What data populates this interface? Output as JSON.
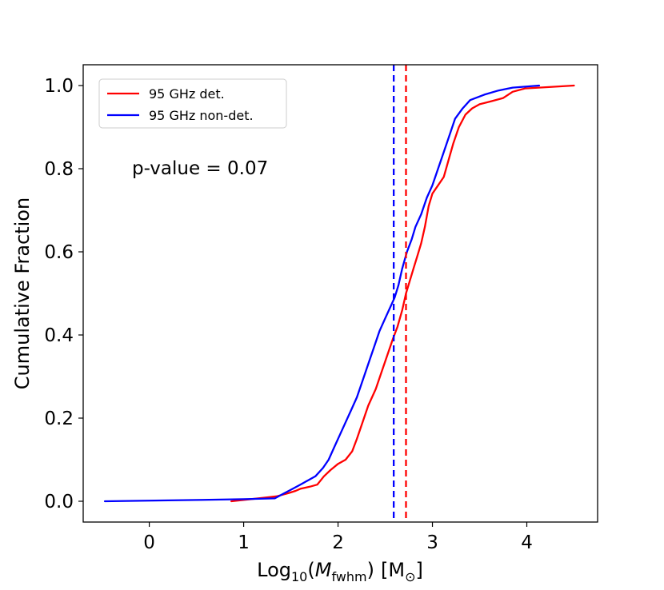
{
  "chart_data": {
    "type": "line",
    "title": "",
    "xlabel": {
      "prefix": "Log",
      "sub": "10",
      "paren_open": "(",
      "var": "M",
      "var_sub": "fwhm",
      "paren_close": ")",
      "unit": "[M",
      "unit_sub": "⊙",
      "unit_close": "]"
    },
    "ylabel": "Cumulative Fraction",
    "xlim": [
      -0.7,
      4.75
    ],
    "ylim": [
      -0.05,
      1.05
    ],
    "xticks": [
      0,
      1,
      2,
      3,
      4
    ],
    "xtick_labels": [
      "0",
      "1",
      "2",
      "3",
      "4"
    ],
    "yticks": [
      0.0,
      0.2,
      0.4,
      0.6,
      0.8,
      1.0
    ],
    "ytick_labels": [
      "0.0",
      "0.2",
      "0.4",
      "0.6",
      "0.8",
      "1.0"
    ],
    "legend_position": "top-left",
    "annotation": "p-value = 0.07",
    "series": [
      {
        "name": "95 GHz det.",
        "color": "#ff0000",
        "points": [
          [
            0.87,
            0.0
          ],
          [
            1.2,
            0.008
          ],
          [
            1.35,
            0.012
          ],
          [
            1.48,
            0.02
          ],
          [
            1.55,
            0.025
          ],
          [
            1.6,
            0.03
          ],
          [
            1.7,
            0.035
          ],
          [
            1.78,
            0.04
          ],
          [
            1.85,
            0.06
          ],
          [
            1.92,
            0.075
          ],
          [
            2.0,
            0.09
          ],
          [
            2.08,
            0.1
          ],
          [
            2.15,
            0.12
          ],
          [
            2.2,
            0.15
          ],
          [
            2.26,
            0.19
          ],
          [
            2.32,
            0.23
          ],
          [
            2.4,
            0.27
          ],
          [
            2.46,
            0.31
          ],
          [
            2.52,
            0.35
          ],
          [
            2.58,
            0.39
          ],
          [
            2.63,
            0.42
          ],
          [
            2.68,
            0.46
          ],
          [
            2.72,
            0.5
          ],
          [
            2.76,
            0.53
          ],
          [
            2.8,
            0.56
          ],
          [
            2.84,
            0.59
          ],
          [
            2.88,
            0.62
          ],
          [
            2.92,
            0.66
          ],
          [
            2.96,
            0.71
          ],
          [
            3.0,
            0.74
          ],
          [
            3.06,
            0.76
          ],
          [
            3.12,
            0.78
          ],
          [
            3.17,
            0.82
          ],
          [
            3.22,
            0.86
          ],
          [
            3.28,
            0.9
          ],
          [
            3.35,
            0.93
          ],
          [
            3.42,
            0.945
          ],
          [
            3.5,
            0.955
          ],
          [
            3.62,
            0.962
          ],
          [
            3.75,
            0.97
          ],
          [
            3.85,
            0.985
          ],
          [
            3.98,
            0.993
          ],
          [
            4.2,
            0.996
          ],
          [
            4.5,
            1.0
          ]
        ]
      },
      {
        "name": "95 GHz non-det.",
        "color": "#0000ff",
        "points": [
          [
            -0.47,
            0.0
          ],
          [
            0.5,
            0.003
          ],
          [
            1.0,
            0.005
          ],
          [
            1.33,
            0.007
          ],
          [
            1.42,
            0.018
          ],
          [
            1.52,
            0.03
          ],
          [
            1.6,
            0.04
          ],
          [
            1.68,
            0.05
          ],
          [
            1.76,
            0.06
          ],
          [
            1.84,
            0.08
          ],
          [
            1.9,
            0.1
          ],
          [
            1.96,
            0.13
          ],
          [
            2.02,
            0.16
          ],
          [
            2.08,
            0.19
          ],
          [
            2.14,
            0.22
          ],
          [
            2.2,
            0.25
          ],
          [
            2.26,
            0.29
          ],
          [
            2.32,
            0.33
          ],
          [
            2.38,
            0.37
          ],
          [
            2.44,
            0.41
          ],
          [
            2.5,
            0.44
          ],
          [
            2.56,
            0.47
          ],
          [
            2.6,
            0.49
          ],
          [
            2.64,
            0.52
          ],
          [
            2.68,
            0.56
          ],
          [
            2.73,
            0.6
          ],
          [
            2.78,
            0.63
          ],
          [
            2.82,
            0.66
          ],
          [
            2.88,
            0.69
          ],
          [
            2.94,
            0.73
          ],
          [
            3.0,
            0.76
          ],
          [
            3.06,
            0.8
          ],
          [
            3.12,
            0.84
          ],
          [
            3.18,
            0.88
          ],
          [
            3.24,
            0.92
          ],
          [
            3.32,
            0.945
          ],
          [
            3.4,
            0.965
          ],
          [
            3.55,
            0.978
          ],
          [
            3.7,
            0.988
          ],
          [
            3.85,
            0.995
          ],
          [
            4.13,
            1.0
          ]
        ]
      }
    ],
    "vlines": [
      {
        "name": "95 GHz det. median",
        "x": 2.72,
        "color": "#ff0000",
        "style": "dashed"
      },
      {
        "name": "95 GHz non-det. median",
        "x": 2.59,
        "color": "#0000ff",
        "style": "dashed"
      }
    ]
  }
}
